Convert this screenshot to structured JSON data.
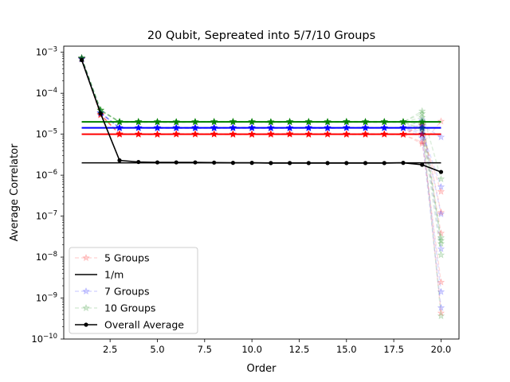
{
  "chart_data": {
    "type": "line",
    "title": "20 Qubit, Sepreated into 5/7/10 Groups",
    "xlabel": "Order",
    "ylabel": "Average Correlator",
    "xlim": [
      0.05,
      20.95
    ],
    "ylim_exponents": [
      -10,
      -2.85
    ],
    "y_scale": "log",
    "grid": false,
    "legend_position": "lower-left",
    "x_ticks": [
      {
        "value": 2.5,
        "label": "2.5"
      },
      {
        "value": 5,
        "label": "5.0"
      },
      {
        "value": 7.5,
        "label": "7.5"
      },
      {
        "value": 10,
        "label": "10.0"
      },
      {
        "value": 12.5,
        "label": "12.5"
      },
      {
        "value": 15,
        "label": "15.0"
      },
      {
        "value": 17.5,
        "label": "17.5"
      },
      {
        "value": 20,
        "label": "20.0"
      }
    ],
    "y_ticks": [
      {
        "exp": -10,
        "base": "10",
        "sup": "−10"
      },
      {
        "exp": -9,
        "base": "10",
        "sup": "−9"
      },
      {
        "exp": -8,
        "base": "10",
        "sup": "−8"
      },
      {
        "exp": -7,
        "base": "10",
        "sup": "−7"
      },
      {
        "exp": -6,
        "base": "10",
        "sup": "−6"
      },
      {
        "exp": -5,
        "base": "10",
        "sup": "−5"
      },
      {
        "exp": -4,
        "base": "10",
        "sup": "−4"
      },
      {
        "exp": -3,
        "base": "10",
        "sup": "−3"
      }
    ],
    "legend": [
      {
        "label": "5 Groups",
        "style": "faded-dashed-star",
        "color": "#ff0000"
      },
      {
        "label": "1/m",
        "style": "solid-line",
        "color": "#000000"
      },
      {
        "label": "7 Groups",
        "style": "faded-dashed-star",
        "color": "#0000ff"
      },
      {
        "label": "10 Groups",
        "style": "faded-dashed-star",
        "color": "#008000"
      },
      {
        "label": "Overall Average",
        "style": "solid-dot",
        "color": "#000000"
      }
    ],
    "x": [
      1,
      2,
      3,
      4,
      5,
      6,
      7,
      8,
      9,
      10,
      11,
      12,
      13,
      14,
      15,
      16,
      17,
      18,
      19,
      20
    ],
    "series": [
      {
        "name": "5 Groups",
        "color": "#ff0000",
        "bundle": true,
        "level": 1e-05,
        "values": [
          0.0007,
          3e-05,
          1e-05,
          1e-05,
          1e-05,
          1e-05,
          1e-05,
          1e-05,
          1e-05,
          1e-05,
          1e-05,
          1e-05,
          1e-05,
          1e-05,
          1e-05,
          1e-05,
          1e-05,
          1e-05,
          1e-05,
          1e-06
        ]
      },
      {
        "name": "7 Groups",
        "color": "#0000ff",
        "bundle": true,
        "level": 1.43e-05,
        "values": [
          0.0007,
          3.3e-05,
          1.43e-05,
          1.43e-05,
          1.43e-05,
          1.43e-05,
          1.43e-05,
          1.43e-05,
          1.43e-05,
          1.43e-05,
          1.43e-05,
          1.43e-05,
          1.43e-05,
          1.43e-05,
          1.43e-05,
          1.43e-05,
          1.43e-05,
          1.43e-05,
          1.43e-05,
          1e-06
        ]
      },
      {
        "name": "10 Groups",
        "color": "#008000",
        "bundle": true,
        "level": 2e-05,
        "values": [
          0.00072,
          3.8e-05,
          2e-05,
          2e-05,
          2e-05,
          2e-05,
          2e-05,
          2e-05,
          2e-05,
          2e-05,
          2e-05,
          2e-05,
          2e-05,
          2e-05,
          2e-05,
          2e-05,
          2e-05,
          2e-05,
          2e-05,
          1e-06
        ]
      },
      {
        "name": "1/m",
        "color": "#000000",
        "constant": 2e-06
      },
      {
        "name": "Overall Average",
        "color": "#000000",
        "values": [
          0.00065,
          3.2e-05,
          2.3e-06,
          2.1e-06,
          2.05e-06,
          2.05e-06,
          2.05e-06,
          2.03e-06,
          2e-06,
          2e-06,
          1.98e-06,
          1.98e-06,
          1.98e-06,
          1.98e-06,
          1.98e-06,
          1.98e-06,
          1.98e-06,
          2e-06,
          1.8e-06,
          1.2e-06
        ]
      }
    ]
  }
}
